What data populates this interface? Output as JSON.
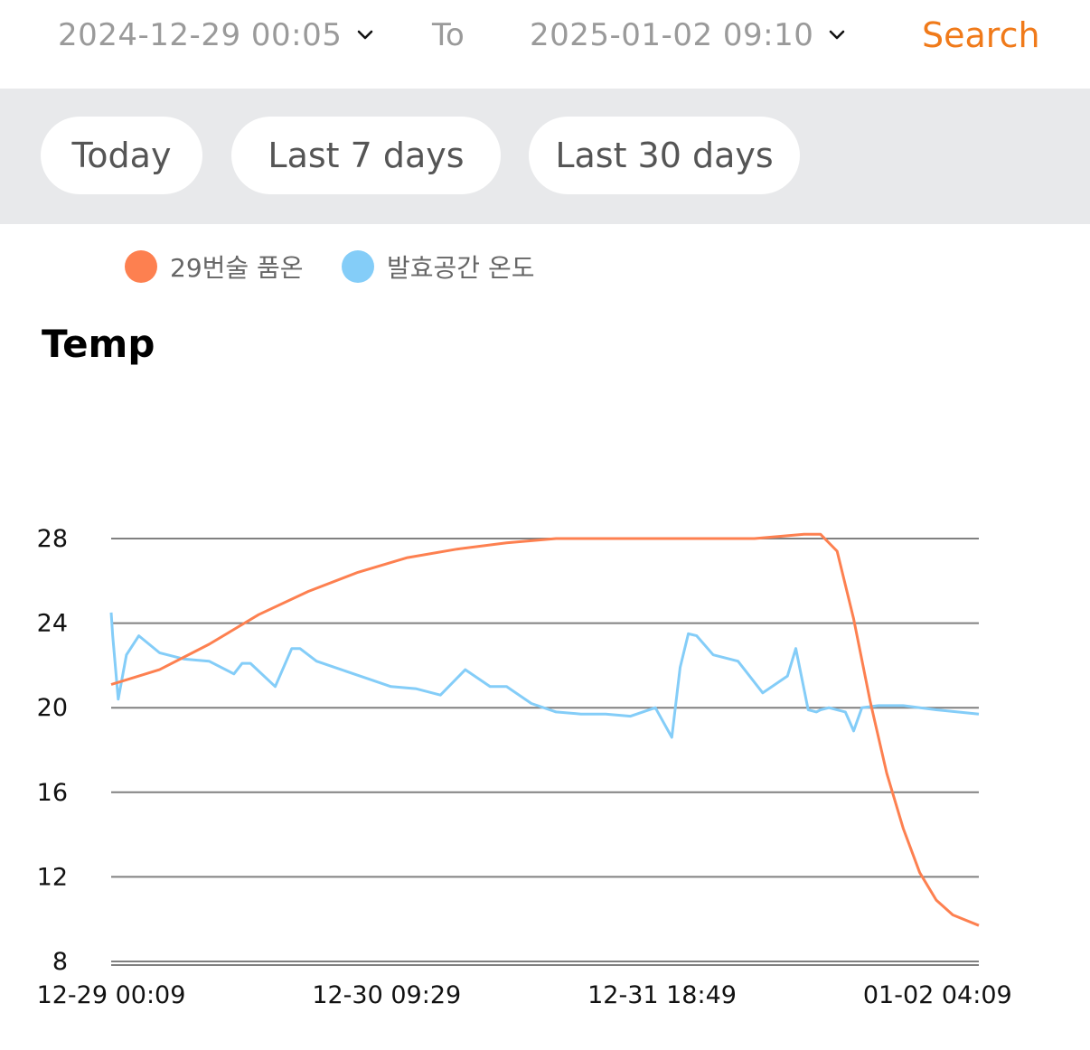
{
  "filter": {
    "start_date": "2024-12-29 00:05",
    "to_label": "To",
    "end_date": "2025-01-02 09:10",
    "search_label": "Search"
  },
  "ranges": [
    {
      "label": "Today"
    },
    {
      "label": "Last 7 days"
    },
    {
      "label": "Last 30 days"
    }
  ],
  "colors": {
    "accent": "#f07a1a",
    "series1": "#fd8050",
    "series2": "#84cdf8",
    "grid": "#808080"
  },
  "chart_data": {
    "type": "line",
    "title": "Temp",
    "legend": "top-left",
    "grid": true,
    "ylim": [
      8,
      28
    ],
    "yticks": [
      "28",
      "24",
      "20",
      "16",
      "12",
      "8"
    ],
    "xticks": [
      "12-29 00:09",
      "12-30 09:29",
      "12-31 18:49",
      "01-02 04:09"
    ],
    "xlim": [
      "12-29 00:09",
      "01-02 09:09"
    ],
    "series": [
      {
        "name": "29번술 품온",
        "x": [
          "12-29 00:09",
          "12-29 06:00",
          "12-29 12:00",
          "12-29 18:00",
          "12-30 00:00",
          "12-30 06:00",
          "12-30 12:00",
          "12-30 18:00",
          "12-31 00:00",
          "12-31 06:00",
          "12-31 12:00",
          "12-31 18:00",
          "01-01 00:00",
          "01-01 06:00",
          "01-01 12:00",
          "01-01 14:00",
          "01-01 16:00",
          "01-01 18:00",
          "01-01 20:00",
          "01-01 22:00",
          "01-02 00:00",
          "01-02 02:00",
          "01-02 04:00",
          "01-02 06:00",
          "01-02 09:09"
        ],
        "y": [
          21.1,
          21.8,
          23.0,
          24.4,
          25.5,
          26.4,
          27.1,
          27.5,
          27.8,
          28.0,
          28.0,
          28.0,
          28.0,
          28.0,
          28.2,
          28.2,
          27.4,
          24.2,
          20.3,
          16.9,
          14.3,
          12.2,
          10.9,
          10.2,
          9.7
        ]
      },
      {
        "name": "발효공간 온도",
        "x": [
          "12-29 00:09",
          "12-29 00:20",
          "12-29 01:00",
          "12-29 02:00",
          "12-29 03:30",
          "12-29 06:00",
          "12-29 09:00",
          "12-29 12:00",
          "12-29 15:00",
          "12-29 16:00",
          "12-29 17:00",
          "12-29 20:00",
          "12-29 22:00",
          "12-29 23:00",
          "12-30 01:00",
          "12-30 04:00",
          "12-30 07:00",
          "12-30 10:00",
          "12-30 13:00",
          "12-30 16:00",
          "12-30 19:00",
          "12-30 22:00",
          "12-31 00:00",
          "12-31 03:00",
          "12-31 06:00",
          "12-31 09:00",
          "12-31 12:00",
          "12-31 15:00",
          "12-31 18:00",
          "12-31 20:00",
          "12-31 21:00",
          "12-31 22:00",
          "12-31 23:00",
          "01-01 01:00",
          "01-01 04:00",
          "01-01 07:00",
          "01-01 10:00",
          "01-01 11:00",
          "01-01 12:30",
          "01-01 13:30",
          "01-01 14:00",
          "01-01 15:00",
          "01-01 17:00",
          "01-01 18:00",
          "01-01 19:00",
          "01-01 21:00",
          "01-02 00:00",
          "01-02 04:00",
          "01-02 09:09"
        ],
        "y": [
          24.5,
          23.4,
          20.4,
          22.5,
          23.4,
          22.6,
          22.3,
          22.2,
          21.6,
          22.1,
          22.1,
          21.0,
          22.8,
          22.8,
          22.2,
          21.8,
          21.4,
          21.0,
          20.9,
          20.6,
          21.8,
          21.0,
          21.0,
          20.2,
          19.8,
          19.7,
          19.7,
          19.6,
          20.0,
          18.6,
          21.9,
          23.5,
          23.4,
          22.5,
          22.2,
          20.7,
          21.5,
          22.8,
          19.9,
          19.8,
          19.9,
          20.0,
          19.8,
          18.9,
          20.0,
          20.1,
          20.1,
          19.9,
          19.7
        ]
      }
    ]
  }
}
